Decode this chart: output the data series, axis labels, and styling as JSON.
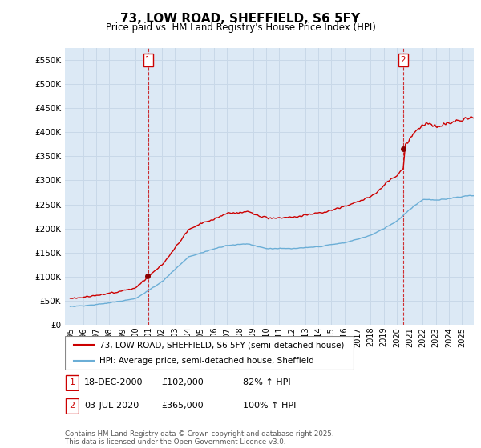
{
  "title": "73, LOW ROAD, SHEFFIELD, S6 5FY",
  "subtitle": "Price paid vs. HM Land Registry's House Price Index (HPI)",
  "background_color": "#ffffff",
  "plot_bg_color": "#dce9f5",
  "grid_color": "#c8d8e8",
  "ylim": [
    0,
    575000
  ],
  "yticks": [
    0,
    50000,
    100000,
    150000,
    200000,
    250000,
    300000,
    350000,
    400000,
    450000,
    500000,
    550000
  ],
  "ytick_labels": [
    "£0",
    "£50K",
    "£100K",
    "£150K",
    "£200K",
    "£250K",
    "£300K",
    "£350K",
    "£400K",
    "£450K",
    "£500K",
    "£550K"
  ],
  "hpi_color": "#6baed6",
  "price_color": "#cc0000",
  "marker_color": "#8b0000",
  "sale1_year": 2000.958,
  "sale1_price": 102000,
  "sale2_year": 2020.5,
  "sale2_price": 365000,
  "legend_line1": "73, LOW ROAD, SHEFFIELD, S6 5FY (semi-detached house)",
  "legend_line2": "HPI: Average price, semi-detached house, Sheffield",
  "ann1_date": "18-DEC-2000",
  "ann1_price": "£102,000",
  "ann1_hpi": "82% ↑ HPI",
  "ann2_date": "03-JUL-2020",
  "ann2_price": "£365,000",
  "ann2_hpi": "100% ↑ HPI",
  "footer": "Contains HM Land Registry data © Crown copyright and database right 2025.\nThis data is licensed under the Open Government Licence v3.0.",
  "xlabels": [
    "1995",
    "1996",
    "1997",
    "1998",
    "1999",
    "2000",
    "2001",
    "2002",
    "2003",
    "2004",
    "2005",
    "2006",
    "2007",
    "2008",
    "2009",
    "2010",
    "2011",
    "2012",
    "2013",
    "2014",
    "2015",
    "2016",
    "2017",
    "2018",
    "2019",
    "2020",
    "2021",
    "2022",
    "2023",
    "2024",
    "2025"
  ]
}
